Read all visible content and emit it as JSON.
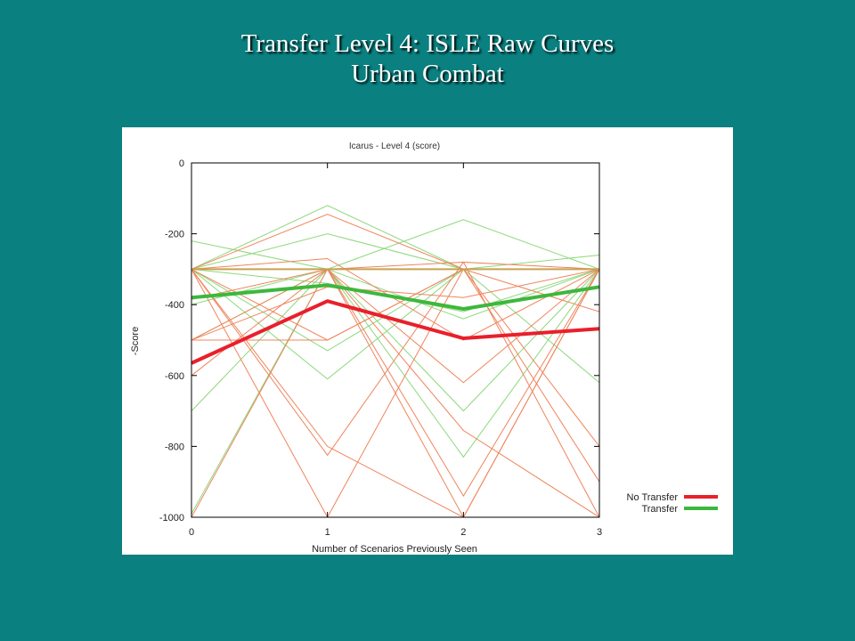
{
  "slide": {
    "title_line1": "Transfer Level 4: ISLE Raw Curves",
    "title_line2": "Urban Combat"
  },
  "colors": {
    "background": "#0a8080",
    "no_transfer": "#e8202c",
    "transfer": "#3cb83c",
    "no_transfer_raw": "#f0845c",
    "transfer_raw": "#8cd87c",
    "overlap_raw": "#c8a050"
  },
  "chart_data": {
    "type": "line",
    "title": "Icarus - Level 4 (score)",
    "xlabel": "Number of Scenarios Previously Seen",
    "ylabel": "-Score",
    "xlim": [
      0,
      3
    ],
    "ylim": [
      -1000,
      0
    ],
    "x": [
      0,
      1,
      2,
      3
    ],
    "x_ticks": [
      "0",
      "1",
      "2",
      "3"
    ],
    "y_ticks": [
      "0",
      "-200",
      "-400",
      "-600",
      "-800",
      "-1000"
    ],
    "y_tick_values": [
      0,
      -200,
      -400,
      -600,
      -800,
      -1000
    ],
    "grid": false,
    "legend_position": "bottom-right outside",
    "series": [
      {
        "name": "No Transfer",
        "color": "#e8202c",
        "values": [
          -565,
          -390,
          -495,
          -468
        ]
      },
      {
        "name": "Transfer",
        "color": "#3cb83c",
        "values": [
          -380,
          -345,
          -412,
          -350
        ]
      }
    ],
    "raw_runs_no_transfer": [
      [
        -300,
        -145,
        -300,
        -300
      ],
      [
        -300,
        -300,
        -620,
        -300
      ],
      [
        -300,
        -500,
        -300,
        -300
      ],
      [
        -300,
        -800,
        -1000,
        -300
      ],
      [
        -300,
        -825,
        -280,
        -300
      ],
      [
        -500,
        -500,
        -300,
        -300
      ],
      [
        -500,
        -300,
        -755,
        -1000
      ],
      [
        -300,
        -300,
        -940,
        -300
      ],
      [
        -1000,
        -300,
        -300,
        -300
      ],
      [
        -300,
        -300,
        -300,
        -800
      ],
      [
        -300,
        -300,
        -300,
        -900
      ],
      [
        -300,
        -300,
        -1000,
        -300
      ],
      [
        -300,
        -1000,
        -300,
        -300
      ],
      [
        -385,
        -300,
        -300,
        -420
      ],
      [
        -600,
        -300,
        -300,
        -300
      ],
      [
        -300,
        -300,
        -280,
        -1000
      ],
      [
        -500,
        -350,
        -380,
        -300
      ],
      [
        -300,
        -270,
        -500,
        -300
      ]
    ],
    "raw_runs_transfer": [
      [
        -300,
        -120,
        -300,
        -300
      ],
      [
        -300,
        -200,
        -300,
        -300
      ],
      [
        -300,
        -300,
        -160,
        -300
      ],
      [
        -300,
        -300,
        -300,
        -260
      ],
      [
        -220,
        -300,
        -300,
        -300
      ],
      [
        -990,
        -300,
        -300,
        -300
      ],
      [
        -700,
        -300,
        -700,
        -300
      ],
      [
        -300,
        -300,
        -830,
        -300
      ],
      [
        -400,
        -300,
        -300,
        -620
      ],
      [
        -300,
        -610,
        -300,
        -300
      ],
      [
        -300,
        -530,
        -300,
        -300
      ],
      [
        -500,
        -300,
        -300,
        -300
      ],
      [
        -300,
        -300,
        -440,
        -300
      ],
      [
        -300,
        -340,
        -420,
        -300
      ]
    ]
  }
}
